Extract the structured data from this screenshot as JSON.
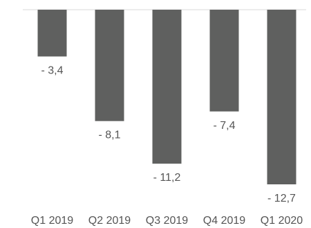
{
  "chart_data": {
    "type": "bar",
    "categories": [
      "Q1 2019",
      "Q2 2019",
      "Q3 2019",
      "Q4 2019",
      "Q1 2020"
    ],
    "values": [
      -3.4,
      -8.1,
      -11.2,
      -7.4,
      -12.7
    ],
    "data_labels": [
      "- 3,4",
      "- 8,1",
      "- 11,2",
      "- 7,4",
      "- 12,7"
    ],
    "title": "",
    "xlabel": "",
    "ylabel": "",
    "ylim": [
      -12.7,
      0
    ],
    "grid": false,
    "legend": "none",
    "bar_color": "#5f605f",
    "axis_color": "#d9d9d9",
    "label_color": "#555555"
  }
}
